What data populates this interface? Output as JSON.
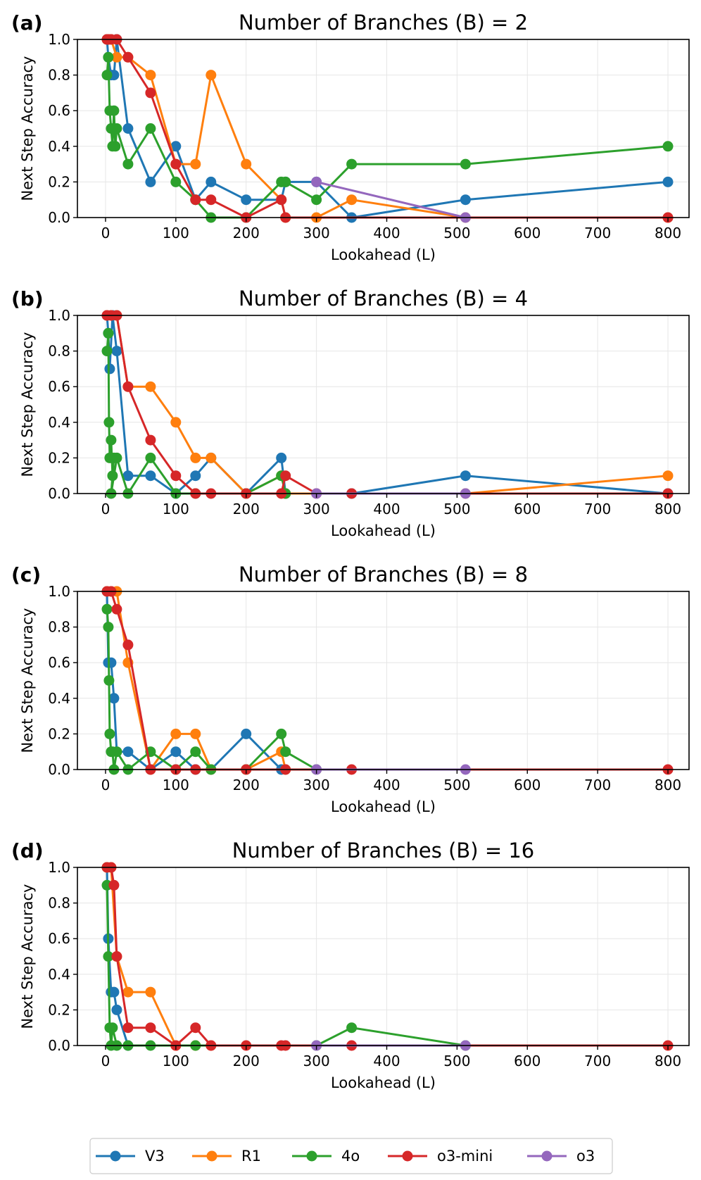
{
  "legend": {
    "entries": [
      {
        "key": "V3",
        "label": "V3",
        "color": "#1f77b4"
      },
      {
        "key": "R1",
        "label": "R1",
        "color": "#ff7f0e"
      },
      {
        "key": "4o",
        "label": "4o",
        "color": "#2ca02c"
      },
      {
        "key": "o3mini",
        "label": "o3-mini",
        "color": "#d62728"
      },
      {
        "key": "o3",
        "label": "o3",
        "color": "#9467bd"
      }
    ],
    "placement": "bottom-center"
  },
  "chart_data": [
    {
      "type": "line",
      "panel": "(a)",
      "title": "Number of Branches (B) = 2",
      "xlabel": "Lookahead (L)",
      "ylabel": "Next Step Accuracy",
      "xlim": [
        -40,
        830
      ],
      "ylim": [
        0.0,
        1.0
      ],
      "xticks": [
        "0",
        "100",
        "200",
        "300",
        "400",
        "500",
        "600",
        "700",
        "800"
      ],
      "yticks": [
        "0.0",
        "0.2",
        "0.4",
        "0.6",
        "0.8",
        "1.0"
      ],
      "grid": true,
      "series": [
        {
          "name": "V3",
          "points": [
            [
              2,
              1.0
            ],
            [
              4,
              0.9
            ],
            [
              8,
              0.8
            ],
            [
              12,
              0.8
            ],
            [
              16,
              1.0
            ],
            [
              32,
              0.5
            ],
            [
              64,
              0.2
            ],
            [
              100,
              0.4
            ],
            [
              128,
              0.1
            ],
            [
              150,
              0.2
            ],
            [
              200,
              0.1
            ],
            [
              250,
              0.1
            ],
            [
              256,
              0.2
            ],
            [
              300,
              0.2
            ],
            [
              350,
              0.0
            ],
            [
              512,
              0.1
            ],
            [
              800,
              0.2
            ]
          ]
        },
        {
          "name": "R1",
          "points": [
            [
              2,
              1.0
            ],
            [
              4,
              1.0
            ],
            [
              8,
              1.0
            ],
            [
              16,
              0.9
            ],
            [
              32,
              0.9
            ],
            [
              64,
              0.8
            ],
            [
              100,
              0.3
            ],
            [
              128,
              0.3
            ],
            [
              150,
              0.8
            ],
            [
              200,
              0.3
            ],
            [
              250,
              0.1
            ],
            [
              256,
              0.0
            ],
            [
              300,
              0.0
            ],
            [
              350,
              0.1
            ],
            [
              512,
              0.0
            ],
            [
              800,
              0.0
            ]
          ]
        },
        {
          "name": "4o",
          "points": [
            [
              2,
              0.8
            ],
            [
              4,
              0.9
            ],
            [
              6,
              0.6
            ],
            [
              8,
              0.5
            ],
            [
              10,
              0.4
            ],
            [
              12,
              0.6
            ],
            [
              14,
              0.4
            ],
            [
              16,
              0.5
            ],
            [
              32,
              0.3
            ],
            [
              64,
              0.5
            ],
            [
              100,
              0.2
            ],
            [
              128,
              0.1
            ],
            [
              150,
              0.0
            ],
            [
              200,
              0.0
            ],
            [
              250,
              0.2
            ],
            [
              256,
              0.2
            ],
            [
              300,
              0.1
            ],
            [
              350,
              0.3
            ],
            [
              512,
              0.3
            ],
            [
              800,
              0.4
            ]
          ]
        },
        {
          "name": "o3-mini",
          "points": [
            [
              2,
              1.0
            ],
            [
              4,
              1.0
            ],
            [
              8,
              1.0
            ],
            [
              16,
              1.0
            ],
            [
              32,
              0.9
            ],
            [
              64,
              0.7
            ],
            [
              100,
              0.3
            ],
            [
              128,
              0.1
            ],
            [
              150,
              0.1
            ],
            [
              200,
              0.0
            ],
            [
              250,
              0.1
            ],
            [
              256,
              0.0
            ],
            [
              800,
              0.0
            ]
          ]
        },
        {
          "name": "o3",
          "points": [
            [
              300,
              0.2
            ],
            [
              512,
              0.0
            ]
          ]
        }
      ]
    },
    {
      "type": "line",
      "panel": "(b)",
      "title": "Number of Branches (B) = 4",
      "xlabel": "Lookahead (L)",
      "ylabel": "Next Step Accuracy",
      "xlim": [
        -40,
        830
      ],
      "ylim": [
        0.0,
        1.0
      ],
      "xticks": [
        "0",
        "100",
        "200",
        "300",
        "400",
        "500",
        "600",
        "700",
        "800"
      ],
      "yticks": [
        "0.0",
        "0.2",
        "0.4",
        "0.6",
        "0.8",
        "1.0"
      ],
      "grid": true,
      "series": [
        {
          "name": "V3",
          "points": [
            [
              2,
              1.0
            ],
            [
              4,
              0.9
            ],
            [
              6,
              0.7
            ],
            [
              10,
              1.0
            ],
            [
              16,
              0.8
            ],
            [
              32,
              0.1
            ],
            [
              64,
              0.1
            ],
            [
              100,
              0.0
            ],
            [
              128,
              0.1
            ],
            [
              150,
              0.2
            ],
            [
              200,
              0.0
            ],
            [
              250,
              0.2
            ],
            [
              256,
              0.0
            ],
            [
              350,
              0.0
            ],
            [
              512,
              0.1
            ],
            [
              800,
              0.0
            ]
          ]
        },
        {
          "name": "R1",
          "points": [
            [
              2,
              1.0
            ],
            [
              8,
              1.0
            ],
            [
              16,
              1.0
            ],
            [
              32,
              0.6
            ],
            [
              64,
              0.6
            ],
            [
              100,
              0.4
            ],
            [
              128,
              0.2
            ],
            [
              150,
              0.2
            ],
            [
              200,
              0.0
            ],
            [
              250,
              0.1
            ],
            [
              256,
              0.0
            ],
            [
              512,
              0.0
            ],
            [
              800,
              0.1
            ]
          ]
        },
        {
          "name": "4o",
          "points": [
            [
              2,
              0.8
            ],
            [
              4,
              0.9
            ],
            [
              5,
              0.4
            ],
            [
              6,
              0.2
            ],
            [
              8,
              0.3
            ],
            [
              10,
              0.1
            ],
            [
              12,
              0.2
            ],
            [
              8,
              0.0
            ],
            [
              16,
              0.2
            ],
            [
              32,
              0.0
            ],
            [
              64,
              0.2
            ],
            [
              100,
              0.0
            ],
            [
              128,
              0.0
            ],
            [
              200,
              0.0
            ],
            [
              250,
              0.1
            ],
            [
              256,
              0.0
            ]
          ]
        },
        {
          "name": "o3-mini",
          "points": [
            [
              2,
              1.0
            ],
            [
              8,
              1.0
            ],
            [
              16,
              1.0
            ],
            [
              32,
              0.6
            ],
            [
              64,
              0.3
            ],
            [
              100,
              0.1
            ],
            [
              128,
              0.0
            ],
            [
              150,
              0.0
            ],
            [
              200,
              0.0
            ],
            [
              250,
              0.0
            ],
            [
              256,
              0.1
            ],
            [
              300,
              0.0
            ],
            [
              350,
              0.0
            ],
            [
              800,
              0.0
            ]
          ]
        },
        {
          "name": "o3",
          "points": [
            [
              300,
              0.0
            ],
            [
              512,
              0.0
            ]
          ]
        }
      ]
    },
    {
      "type": "line",
      "panel": "(c)",
      "title": "Number of Branches (B) = 8",
      "xlabel": "Lookahead (L)",
      "ylabel": "Next Step Accuracy",
      "xlim": [
        -40,
        830
      ],
      "ylim": [
        0.0,
        1.0
      ],
      "xticks": [
        "0",
        "100",
        "200",
        "300",
        "400",
        "500",
        "600",
        "700",
        "800"
      ],
      "yticks": [
        "0.0",
        "0.2",
        "0.4",
        "0.6",
        "0.8",
        "1.0"
      ],
      "grid": true,
      "series": [
        {
          "name": "V3",
          "points": [
            [
              2,
              1.0
            ],
            [
              4,
              0.6
            ],
            [
              8,
              0.6
            ],
            [
              12,
              0.4
            ],
            [
              16,
              0.1
            ],
            [
              32,
              0.1
            ],
            [
              64,
              0.0
            ],
            [
              100,
              0.1
            ],
            [
              128,
              0.0
            ],
            [
              150,
              0.0
            ],
            [
              200,
              0.2
            ],
            [
              250,
              0.0
            ]
          ]
        },
        {
          "name": "R1",
          "points": [
            [
              2,
              1.0
            ],
            [
              8,
              1.0
            ],
            [
              16,
              1.0
            ],
            [
              32,
              0.6
            ],
            [
              64,
              0.0
            ],
            [
              100,
              0.2
            ],
            [
              128,
              0.2
            ],
            [
              150,
              0.0
            ],
            [
              200,
              0.0
            ],
            [
              250,
              0.1
            ],
            [
              256,
              0.0
            ]
          ]
        },
        {
          "name": "4o",
          "points": [
            [
              2,
              0.9
            ],
            [
              4,
              0.8
            ],
            [
              5,
              0.5
            ],
            [
              6,
              0.2
            ],
            [
              8,
              0.1
            ],
            [
              10,
              0.1
            ],
            [
              12,
              0.0
            ],
            [
              16,
              0.1
            ],
            [
              32,
              0.0
            ],
            [
              64,
              0.1
            ],
            [
              100,
              0.0
            ],
            [
              128,
              0.1
            ],
            [
              150,
              0.0
            ],
            [
              200,
              0.0
            ],
            [
              250,
              0.2
            ],
            [
              256,
              0.1
            ],
            [
              300,
              0.0
            ]
          ]
        },
        {
          "name": "o3-mini",
          "points": [
            [
              2,
              1.0
            ],
            [
              8,
              1.0
            ],
            [
              16,
              0.9
            ],
            [
              32,
              0.7
            ],
            [
              64,
              0.0
            ],
            [
              100,
              0.0
            ],
            [
              128,
              0.0
            ],
            [
              200,
              0.0
            ],
            [
              256,
              0.0
            ],
            [
              350,
              0.0
            ],
            [
              800,
              0.0
            ]
          ]
        },
        {
          "name": "o3",
          "points": [
            [
              300,
              0.0
            ],
            [
              512,
              0.0
            ]
          ]
        }
      ]
    },
    {
      "type": "line",
      "panel": "(d)",
      "title": "Number of Branches (B) = 16",
      "xlabel": "Lookahead (L)",
      "ylabel": "Next Step Accuracy",
      "xlim": [
        -40,
        830
      ],
      "ylim": [
        0.0,
        1.0
      ],
      "xticks": [
        "0",
        "100",
        "200",
        "300",
        "400",
        "500",
        "600",
        "700",
        "800"
      ],
      "yticks": [
        "0.0",
        "0.2",
        "0.4",
        "0.6",
        "0.8",
        "1.0"
      ],
      "grid": true,
      "series": [
        {
          "name": "V3",
          "points": [
            [
              2,
              1.0
            ],
            [
              4,
              0.6
            ],
            [
              8,
              0.3
            ],
            [
              12,
              0.3
            ],
            [
              16,
              0.2
            ],
            [
              32,
              0.0
            ]
          ]
        },
        {
          "name": "R1",
          "points": [
            [
              2,
              1.0
            ],
            [
              8,
              1.0
            ],
            [
              16,
              0.5
            ],
            [
              32,
              0.3
            ],
            [
              64,
              0.3
            ],
            [
              100,
              0.0
            ],
            [
              128,
              0.0
            ],
            [
              150,
              0.0
            ]
          ]
        },
        {
          "name": "4o",
          "points": [
            [
              2,
              0.9
            ],
            [
              4,
              0.5
            ],
            [
              6,
              0.1
            ],
            [
              8,
              0.0
            ],
            [
              10,
              0.1
            ],
            [
              16,
              0.0
            ],
            [
              32,
              0.0
            ],
            [
              64,
              0.0
            ],
            [
              128,
              0.0
            ],
            [
              300,
              0.0
            ],
            [
              350,
              0.1
            ],
            [
              512,
              0.0
            ]
          ]
        },
        {
          "name": "o3-mini",
          "points": [
            [
              2,
              1.0
            ],
            [
              8,
              1.0
            ],
            [
              12,
              0.9
            ],
            [
              16,
              0.5
            ],
            [
              32,
              0.1
            ],
            [
              64,
              0.1
            ],
            [
              100,
              0.0
            ],
            [
              128,
              0.1
            ],
            [
              150,
              0.0
            ],
            [
              200,
              0.0
            ],
            [
              250,
              0.0
            ],
            [
              256,
              0.0
            ],
            [
              350,
              0.0
            ],
            [
              800,
              0.0
            ]
          ]
        },
        {
          "name": "o3",
          "points": [
            [
              300,
              0.0
            ],
            [
              512,
              0.0
            ]
          ]
        }
      ]
    }
  ]
}
